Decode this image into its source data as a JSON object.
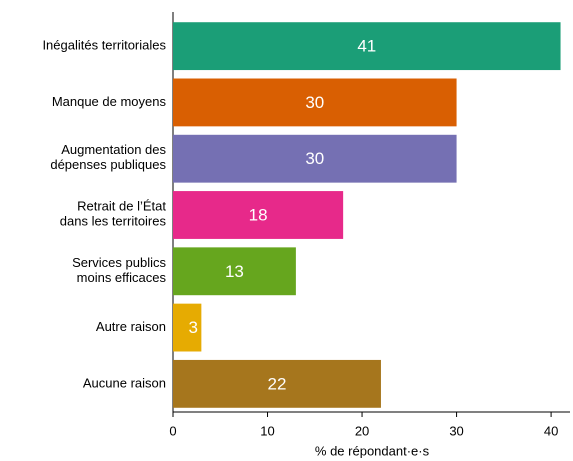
{
  "chart_data": {
    "type": "barh",
    "categories": [
      "Inégalités territoriales",
      "Manque de moyens",
      "Augmentation des\ndépenses publiques",
      "Retrait de l’État\ndans les territoires",
      "Services publics\nmoins efficaces",
      "Autre raison",
      "Aucune raison"
    ],
    "values": [
      41,
      30,
      30,
      18,
      13,
      3,
      22
    ],
    "colors": [
      "#1b9e77",
      "#d95f02",
      "#7570b3",
      "#e7298a",
      "#66a61e",
      "#e6ab02",
      "#a6761d"
    ],
    "xlabel": "% de répondant·e·s",
    "xlim": [
      0,
      42
    ],
    "xticks": [
      0,
      10,
      20,
      30,
      40
    ]
  }
}
